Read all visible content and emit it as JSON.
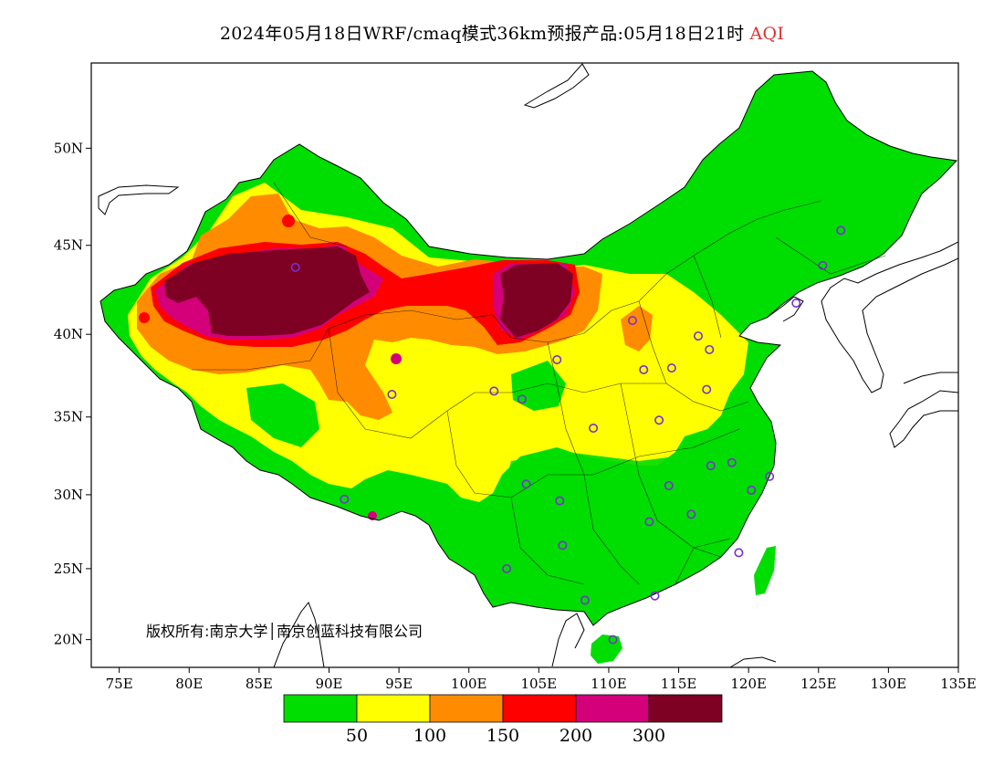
{
  "title": {
    "main": "2024年05月18日WRF/cmaq模式36km预报产品:05月18日21时",
    "variable": "AQI"
  },
  "copyright": "版权所有:南京大学│南京创蓝科技有限公司",
  "axes": {
    "lon_ticks": [
      "75E",
      "80E",
      "85E",
      "90E",
      "95E",
      "100E",
      "105E",
      "110E",
      "115E",
      "120E",
      "125E",
      "130E",
      "135E"
    ],
    "lat_ticks": [
      "20N",
      "25N",
      "30N",
      "35N",
      "40N",
      "45N",
      "50N"
    ],
    "lon_range": [
      73,
      135
    ],
    "lat_range": [
      18,
      54
    ]
  },
  "legend": {
    "colors": [
      "#00dd00",
      "#ffff00",
      "#ff8c00",
      "#ff0000",
      "#d3007a",
      "#7e0023"
    ],
    "labels": [
      "50",
      "100",
      "150",
      "200",
      "300"
    ]
  },
  "colors": {
    "good": "#00dd00",
    "moderate": "#ffff00",
    "usg": "#ff8c00",
    "unhealthy": "#ff0000",
    "very_unhealthy": "#d3007a",
    "hazardous": "#7e0023",
    "station_marker": "#7b2fd0",
    "title_accent": "#e03030"
  },
  "stations": [
    [
      87.6,
      43.8
    ],
    [
      91.1,
      29.7
    ],
    [
      101.8,
      36.6
    ],
    [
      103.8,
      36.1
    ],
    [
      106.3,
      38.5
    ],
    [
      111.7,
      40.8
    ],
    [
      112.5,
      37.9
    ],
    [
      114.5,
      38.0
    ],
    [
      116.4,
      39.9
    ],
    [
      117.2,
      39.1
    ],
    [
      117.0,
      36.7
    ],
    [
      113.6,
      34.8
    ],
    [
      108.9,
      34.3
    ],
    [
      104.1,
      30.7
    ],
    [
      106.5,
      29.6
    ],
    [
      106.7,
      26.6
    ],
    [
      102.7,
      25.0
    ],
    [
      108.3,
      22.8
    ],
    [
      113.3,
      23.1
    ],
    [
      110.3,
      20.0
    ],
    [
      112.9,
      28.2
    ],
    [
      115.9,
      28.7
    ],
    [
      114.3,
      30.6
    ],
    [
      117.3,
      31.9
    ],
    [
      118.8,
      32.1
    ],
    [
      120.2,
      30.3
    ],
    [
      121.5,
      31.2
    ],
    [
      119.3,
      26.1
    ],
    [
      123.4,
      41.8
    ],
    [
      125.3,
      43.9
    ],
    [
      126.6,
      45.8
    ],
    [
      94.5,
      36.4
    ]
  ]
}
